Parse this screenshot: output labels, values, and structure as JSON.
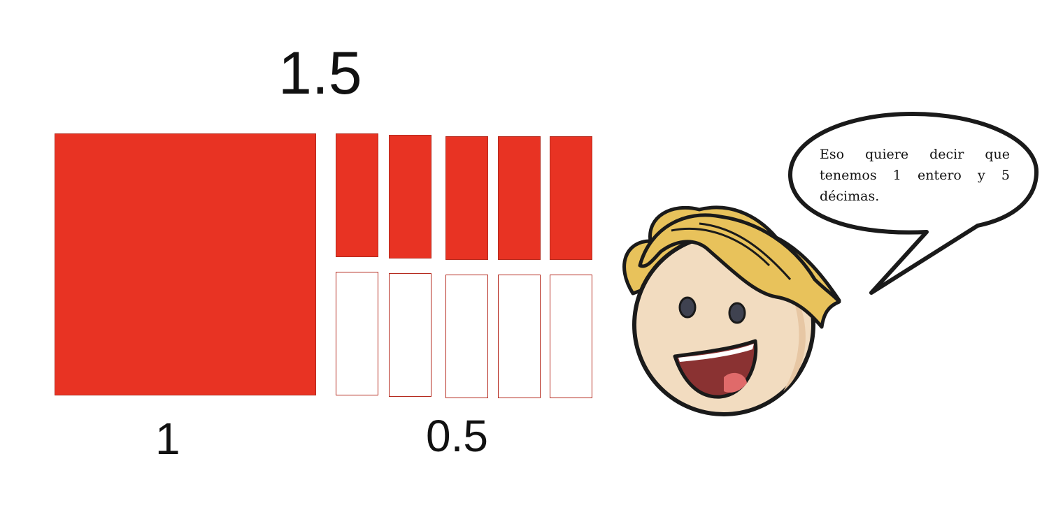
{
  "total_number": "1.5",
  "whole_number": "1",
  "decimal_number": "0.5",
  "tenths": {
    "filled": 5,
    "total": 10
  },
  "speech_bubble": {
    "text": "Eso quiere decir que tenemos 1 entero y 5 décimas."
  },
  "colors": {
    "fill": "#e83323",
    "outline": "#b52a1e",
    "hair": "#e8c25b",
    "skin": "#f2dcc0"
  }
}
